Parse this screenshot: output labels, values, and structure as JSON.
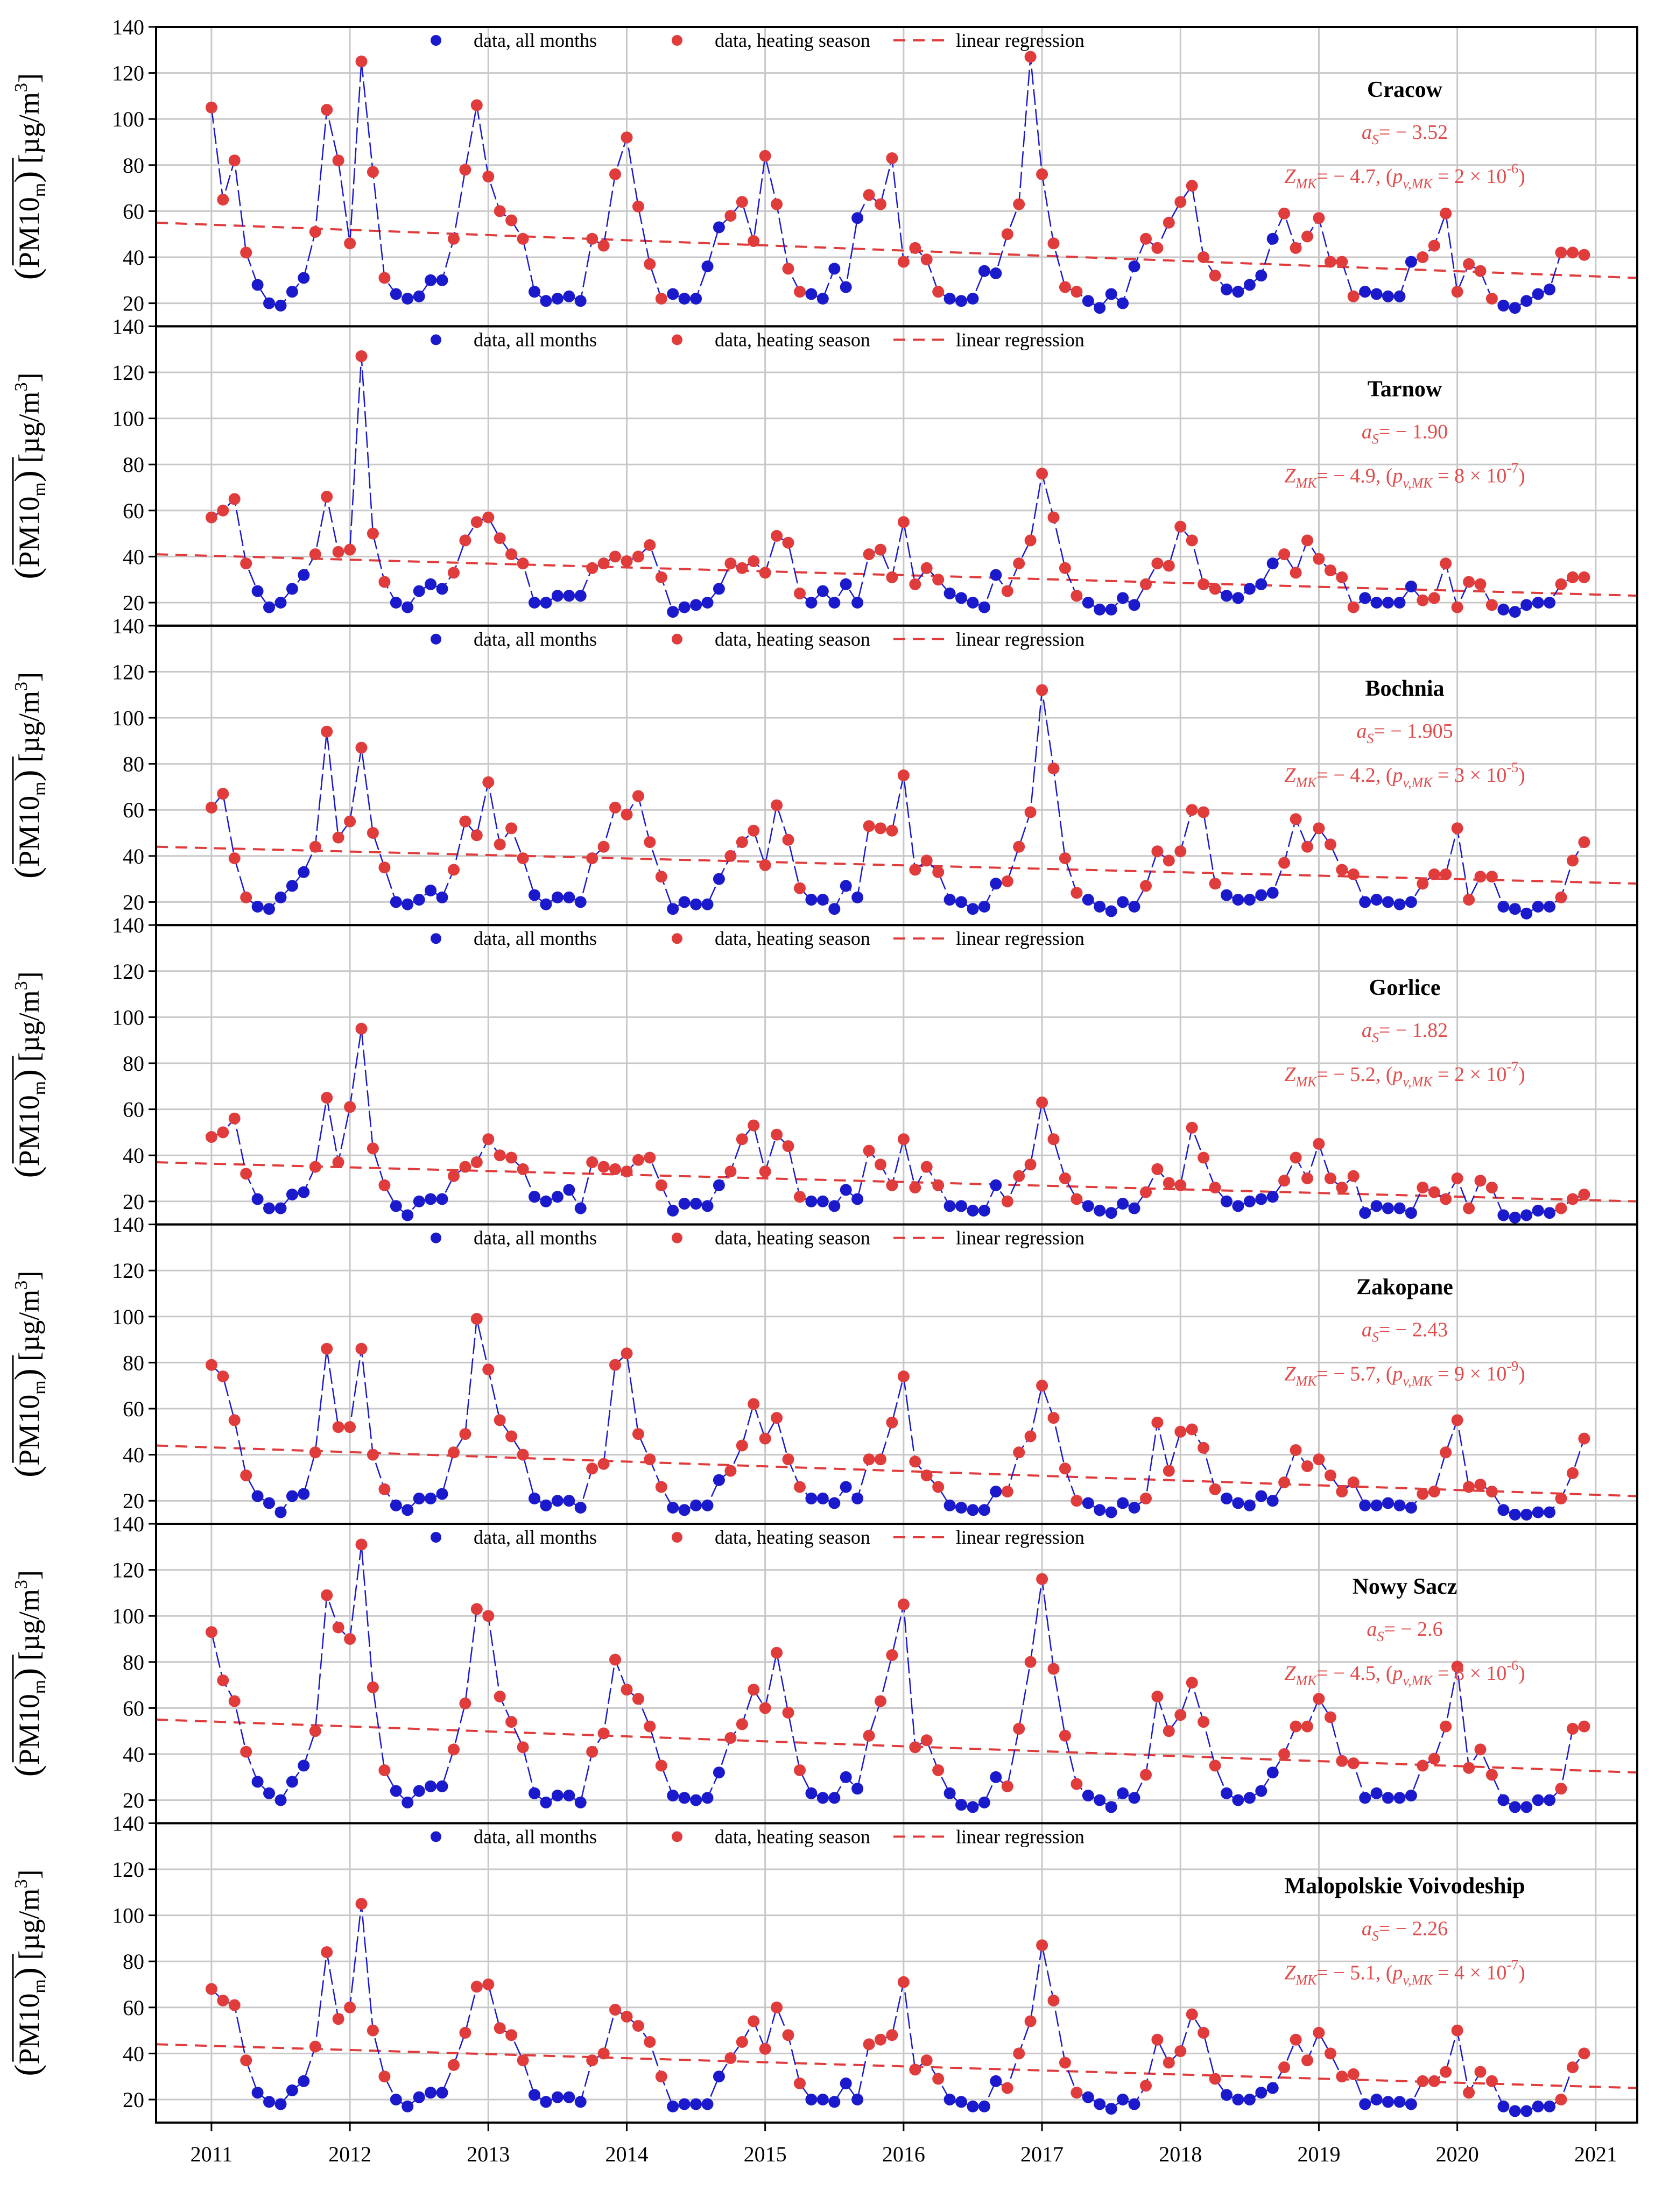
{
  "chart_data": {
    "type": "scatter",
    "ylabel": "(PM10m) [µg/m3]",
    "ylabel_parts": {
      "main": "PM10",
      "sub": "m",
      "unit": "[µg/m",
      "sup": "3",
      "close": "]"
    },
    "ylim": [
      10,
      140
    ],
    "yticks": [
      "20",
      "40",
      "60",
      "80",
      "100",
      "120",
      "140"
    ],
    "xlim": [
      2010.6,
      2021.3
    ],
    "xticks": [
      "2011",
      "2012",
      "2013",
      "2014",
      "2015",
      "2016",
      "2017",
      "2018",
      "2019",
      "2020",
      "2021"
    ],
    "legend": {
      "all_months": "data, all months",
      "heating": "data, heating season",
      "regression": "linear regression"
    },
    "colors": {
      "all_months": "#1a1acc",
      "heating": "#e03c3c",
      "regression": "#e03c3c",
      "stats": "#e04b4b",
      "grid": "#c8c8c8"
    },
    "heating_months": [
      1,
      2,
      3,
      4,
      10,
      11,
      12
    ],
    "panels": [
      {
        "station": "Cracow",
        "a_s": "= − 3.52",
        "zmk": "= − 4.7,",
        "pv_mantissa": "= 2 × 10",
        "pv_exponent": "-6",
        "regression": [
          55,
          31
        ],
        "values": [
          [
            105,
            65,
            82,
            42,
            28,
            20,
            19,
            25,
            31,
            51,
            104,
            82,
            46,
            125,
            77,
            31,
            24,
            22,
            23,
            30,
            30,
            48,
            78,
            106,
            75,
            60,
            56,
            48,
            25,
            21,
            22,
            23,
            21,
            48,
            45,
            76,
            92,
            62,
            37,
            22,
            24,
            22,
            22,
            36,
            53,
            58,
            64,
            47,
            84,
            63,
            35,
            25,
            24,
            22,
            35,
            27,
            57,
            67,
            63,
            83,
            38,
            44,
            39,
            25,
            22,
            21,
            22,
            34,
            33,
            50,
            63,
            127,
            76,
            46,
            27,
            25,
            21,
            18,
            24,
            20,
            36,
            48,
            44,
            55,
            64,
            71,
            40,
            32,
            26,
            25,
            28,
            32,
            48,
            59,
            44,
            49,
            57,
            38,
            38,
            23,
            25,
            24,
            23,
            23,
            38,
            40,
            45,
            59,
            25,
            37,
            34,
            22,
            19,
            18,
            21,
            24,
            26,
            42,
            42,
            41
          ]
        ]
      },
      {
        "station": "Tarnow",
        "a_s": "= − 1.90",
        "zmk": "= − 4.9,",
        "pv_mantissa": "= 8 × 10",
        "pv_exponent": "-7",
        "regression": [
          41,
          23
        ],
        "values": [
          [
            57,
            60,
            65,
            37,
            25,
            18,
            20,
            26,
            32,
            41,
            66,
            42,
            43,
            127,
            50,
            29,
            20,
            18,
            25,
            28,
            26,
            33,
            47,
            55,
            57,
            48,
            41,
            37,
            20,
            20,
            23,
            23,
            23,
            35,
            37,
            40,
            38,
            40,
            45,
            31,
            16,
            18,
            19,
            20,
            26,
            37,
            35,
            38,
            33,
            49,
            46,
            24,
            20,
            25,
            20,
            28,
            20,
            41,
            43,
            31,
            55,
            28,
            35,
            30,
            24,
            22,
            20,
            18,
            32,
            25,
            37,
            47,
            76,
            57,
            35,
            23,
            20,
            17,
            17,
            22,
            19,
            28,
            37,
            36,
            53,
            47,
            28,
            26,
            23,
            22,
            26,
            28,
            37,
            41,
            33,
            47,
            39,
            34,
            31,
            18,
            22,
            20,
            20,
            20,
            27,
            21,
            22,
            37,
            18,
            29,
            28,
            19,
            17,
            16,
            19,
            20,
            20,
            28,
            31,
            31
          ]
        ]
      },
      {
        "station": "Bochnia",
        "a_s": "= − 1.905",
        "zmk": "= − 4.2,",
        "pv_mantissa": "= 3 × 10",
        "pv_exponent": "-5",
        "regression": [
          44,
          28
        ],
        "values": [
          [
            61,
            67,
            39,
            22,
            18,
            17,
            22,
            27,
            33,
            44,
            94,
            48,
            55,
            87,
            50,
            35,
            20,
            19,
            21,
            25,
            22,
            34,
            55,
            49,
            72,
            45,
            52,
            39,
            23,
            19,
            22,
            22,
            20,
            39,
            44,
            61,
            58,
            66,
            46,
            31,
            17,
            20,
            19,
            19,
            30,
            40,
            46,
            51,
            36,
            62,
            47,
            26,
            21,
            21,
            17,
            27,
            22,
            53,
            52,
            51,
            75,
            34,
            38,
            33,
            21,
            20,
            17,
            18,
            28,
            29,
            44,
            59,
            112,
            78,
            39,
            24,
            21,
            18,
            16,
            20,
            18,
            27,
            42,
            38,
            42,
            60,
            59,
            28,
            23,
            21,
            21,
            23,
            24,
            37,
            56,
            44,
            52,
            45,
            34,
            32,
            20,
            21,
            20,
            19,
            20,
            28,
            32,
            32,
            52,
            21,
            31,
            31,
            18,
            17,
            15,
            18,
            18,
            22,
            38,
            46
          ]
        ]
      },
      {
        "station": "Gorlice",
        "a_s": "= − 1.82",
        "zmk": "= − 5.2,",
        "pv_mantissa": "= 2 × 10",
        "pv_exponent": "-7",
        "regression": [
          37,
          20
        ],
        "values": [
          [
            48,
            50,
            56,
            32,
            21,
            17,
            17,
            23,
            24,
            35,
            65,
            37,
            61,
            95,
            43,
            27,
            18,
            14,
            20,
            21,
            21,
            31,
            35,
            37,
            47,
            40,
            39,
            34,
            22,
            20,
            22,
            25,
            17,
            37,
            35,
            34,
            33,
            38,
            39,
            27,
            16,
            19,
            19,
            18,
            27,
            33,
            47,
            53,
            33,
            49,
            44,
            22,
            20,
            20,
            18,
            25,
            21,
            42,
            36,
            27,
            47,
            26,
            35,
            27,
            18,
            18,
            16,
            16,
            27,
            20,
            31,
            36,
            63,
            47,
            30,
            21,
            18,
            16,
            15,
            19,
            17,
            24,
            34,
            28,
            27,
            52,
            39,
            26,
            20,
            18,
            20,
            21,
            22,
            29,
            39,
            30,
            45,
            30,
            26,
            31,
            15,
            18,
            17,
            17,
            15,
            26,
            24,
            21,
            30,
            17,
            29,
            26,
            14,
            13,
            14,
            16,
            15,
            17,
            21,
            23
          ]
        ]
      },
      {
        "station": "Zakopane",
        "a_s": "= − 2.43",
        "zmk": "= − 5.7,",
        "pv_mantissa": "= 9 × 10",
        "pv_exponent": "-9",
        "regression": [
          44,
          22
        ],
        "values": [
          [
            79,
            74,
            55,
            31,
            22,
            19,
            15,
            22,
            23,
            41,
            86,
            52,
            52,
            86,
            40,
            25,
            18,
            16,
            21,
            21,
            23,
            41,
            49,
            99,
            77,
            55,
            48,
            40,
            21,
            18,
            20,
            20,
            17,
            34,
            36,
            79,
            84,
            49,
            38,
            26,
            17,
            16,
            18,
            18,
            29,
            33,
            44,
            62,
            47,
            56,
            38,
            26,
            21,
            21,
            19,
            26,
            21,
            38,
            38,
            54,
            74,
            37,
            31,
            26,
            18,
            17,
            16,
            16,
            24,
            24,
            41,
            48,
            70,
            56,
            34,
            20,
            19,
            16,
            15,
            19,
            17,
            21,
            54,
            33,
            50,
            51,
            43,
            25,
            21,
            19,
            18,
            22,
            20,
            28,
            42,
            35,
            38,
            31,
            24,
            28,
            18,
            18,
            19,
            18,
            17,
            23,
            24,
            41,
            55,
            26,
            27,
            24,
            16,
            14,
            14,
            15,
            15,
            21,
            32,
            47
          ]
        ]
      },
      {
        "station": "Nowy Sacz",
        "a_s": "= − 2.6",
        "zmk": "= − 4.5,",
        "pv_mantissa": "= 8 × 10",
        "pv_exponent": "-6",
        "regression": [
          55,
          32
        ],
        "values": [
          [
            93,
            72,
            63,
            41,
            28,
            23,
            20,
            28,
            35,
            50,
            109,
            95,
            90,
            131,
            69,
            33,
            24,
            19,
            24,
            26,
            26,
            42,
            62,
            103,
            100,
            65,
            54,
            43,
            23,
            19,
            22,
            22,
            19,
            41,
            49,
            81,
            68,
            64,
            52,
            35,
            22,
            21,
            20,
            21,
            32,
            47,
            53,
            68,
            60,
            84,
            58,
            33,
            23,
            21,
            21,
            30,
            25,
            48,
            63,
            83,
            105,
            43,
            46,
            33,
            23,
            18,
            17,
            19,
            30,
            26,
            51,
            80,
            116,
            77,
            48,
            27,
            22,
            20,
            17,
            23,
            21,
            31,
            65,
            50,
            57,
            71,
            54,
            35,
            23,
            20,
            21,
            24,
            32,
            40,
            52,
            52,
            64,
            56,
            37,
            36,
            21,
            23,
            21,
            21,
            22,
            35,
            38,
            52,
            78,
            34,
            42,
            31,
            20,
            17,
            17,
            20,
            20,
            25,
            51,
            52
          ]
        ]
      },
      {
        "station": "Malopolskie Voivodeship",
        "a_s": "= − 2.26",
        "zmk": "= − 5.1,",
        "pv_mantissa": "= 4 × 10",
        "pv_exponent": "-7",
        "regression": [
          44,
          25
        ],
        "values": [
          [
            68,
            63,
            61,
            37,
            23,
            19,
            18,
            24,
            28,
            43,
            84,
            55,
            60,
            105,
            50,
            30,
            20,
            17,
            21,
            23,
            23,
            35,
            49,
            69,
            70,
            51,
            48,
            37,
            22,
            19,
            21,
            21,
            19,
            37,
            40,
            59,
            56,
            52,
            45,
            30,
            17,
            18,
            18,
            18,
            30,
            38,
            45,
            54,
            42,
            60,
            48,
            27,
            20,
            20,
            19,
            27,
            20,
            44,
            46,
            48,
            71,
            33,
            37,
            29,
            20,
            19,
            17,
            17,
            28,
            25,
            40,
            54,
            87,
            63,
            36,
            23,
            21,
            18,
            16,
            20,
            18,
            26,
            46,
            36,
            41,
            57,
            49,
            29,
            22,
            20,
            20,
            23,
            25,
            34,
            46,
            37,
            49,
            40,
            30,
            31,
            18,
            20,
            19,
            19,
            18,
            28,
            28,
            32,
            50,
            23,
            32,
            28,
            17,
            15,
            15,
            17,
            17,
            20,
            34,
            40
          ]
        ]
      }
    ]
  }
}
